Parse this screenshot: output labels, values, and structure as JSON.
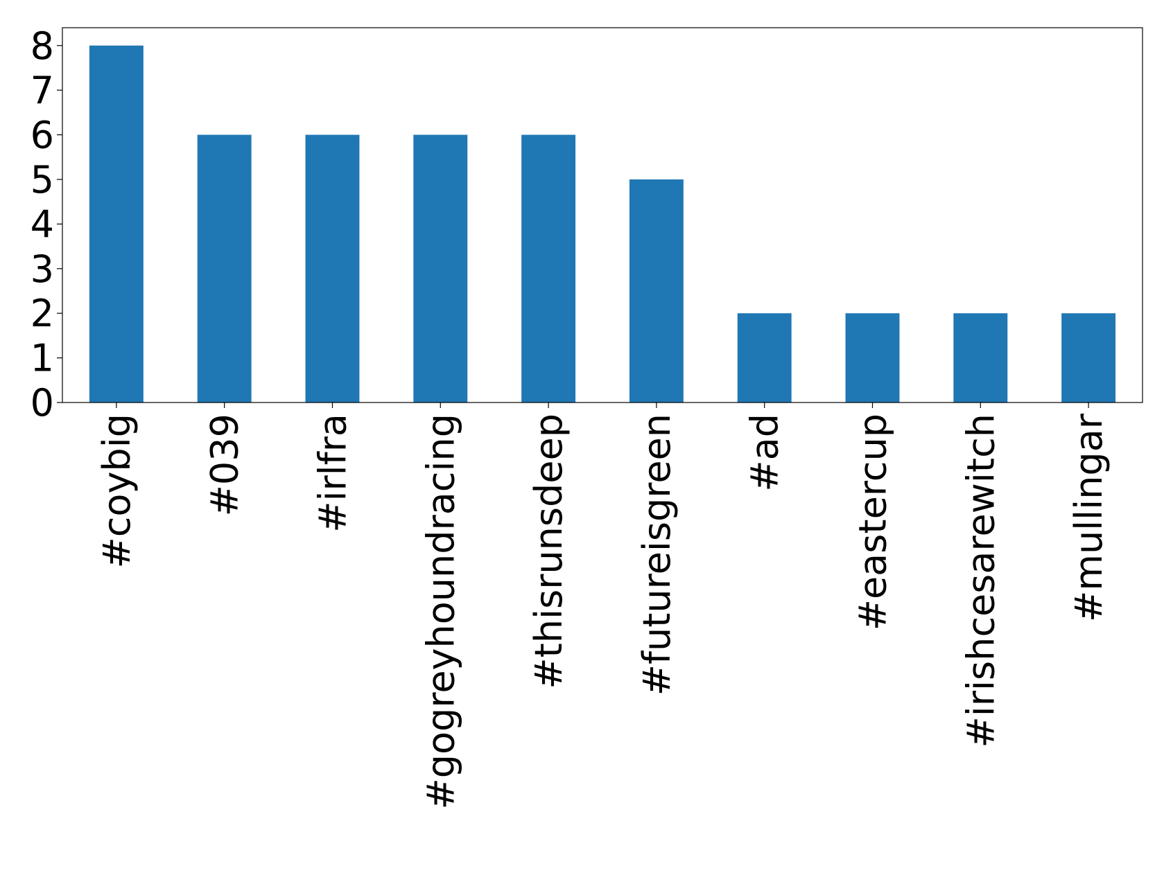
{
  "chart_data": {
    "type": "bar",
    "categories": [
      "#coybig",
      "#039",
      "#irlfra",
      "#gogreyhoundracing",
      "#thisrunsdeep",
      "#futureisgreen",
      "#ad",
      "#eastercup",
      "#irishcesarewitch",
      "#mullingar"
    ],
    "values": [
      8,
      6,
      6,
      6,
      6,
      5,
      2,
      2,
      2,
      2
    ],
    "color": "#1f77b4",
    "ylim": [
      0,
      8.4
    ],
    "yticks": [
      0,
      1,
      2,
      3,
      4,
      5,
      6,
      7,
      8
    ],
    "grid": false
  }
}
